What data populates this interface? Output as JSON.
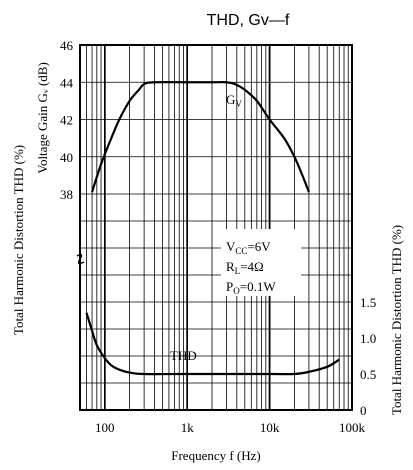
{
  "chart_data": {
    "type": "line",
    "title": "THD, Gv—f",
    "xlabel": "Frequency f (Hz)",
    "ylabel_left": "Total Harmonic Distortion THD (%)",
    "ylabel_left_inner": "Voltage Gain Gᵥ (dB)",
    "ylabel_right": "Total Harmonic Distortion THD (%)",
    "x_scale": "log",
    "xlim": [
      50,
      100000
    ],
    "x_ticks": [
      100,
      1000,
      10000,
      100000
    ],
    "x_tick_labels": [
      "100",
      "1k",
      "10k",
      "100k"
    ],
    "gain_axis": {
      "ylim": [
        36,
        46
      ],
      "ticks": [
        38,
        40,
        42,
        44,
        46
      ],
      "tick_labels": [
        "38",
        "40",
        "42",
        "44",
        "46"
      ]
    },
    "thd_axis": {
      "ylim": [
        0,
        2.3
      ],
      "ticks": [
        0,
        0.5,
        1.0,
        1.5
      ],
      "tick_labels": [
        "0",
        "0.5",
        "1.0",
        "1.5"
      ]
    },
    "grid": true,
    "series": [
      {
        "name": "Gᵥ",
        "axis": "gain",
        "x": [
          70,
          90,
          120,
          150,
          200,
          260,
          300,
          400,
          1000,
          2000,
          3000,
          3800,
          5000,
          7000,
          10000,
          15000,
          20000,
          25000,
          30000
        ],
        "y": [
          38.1,
          39.6,
          41.0,
          42.0,
          43.0,
          43.6,
          43.9,
          44.0,
          44.0,
          44.0,
          44.0,
          43.9,
          43.6,
          43.0,
          42.0,
          41.0,
          40.0,
          39.0,
          38.1
        ]
      },
      {
        "name": "THD",
        "axis": "thd",
        "x": [
          60,
          70,
          80,
          100,
          120,
          150,
          200,
          300,
          1000,
          10000,
          20000,
          30000,
          50000,
          70000
        ],
        "y": [
          1.35,
          1.1,
          0.9,
          0.72,
          0.62,
          0.56,
          0.52,
          0.5,
          0.5,
          0.5,
          0.5,
          0.53,
          0.6,
          0.7
        ]
      }
    ],
    "annotations": {
      "gv_label": "G",
      "gv_sub": "V",
      "thd_label": "THD",
      "vcc_main": "V",
      "vcc_sub": "CC",
      "vcc_val": "=6V",
      "rl_main": "R",
      "rl_sub": "L",
      "rl_val": "=4Ω",
      "po_main": "P",
      "po_sub": "O",
      "po_val": "=0.1W"
    }
  }
}
